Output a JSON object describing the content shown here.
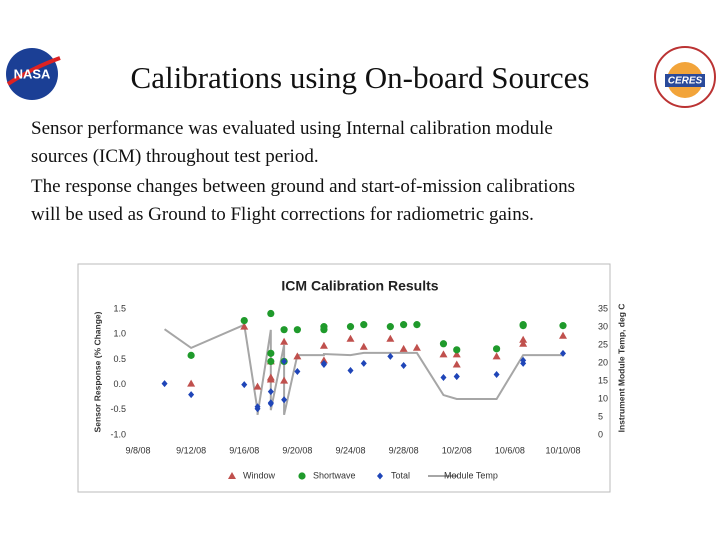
{
  "title": "Calibrations using On-board Sources",
  "body": [
    "Sensor performance was evaluated using Internal calibration module",
    "sources (ICM) throughout test period.",
    "The response changes between ground and start-of-mission  calibrations",
    "will be used as Ground to Flight corrections for radiometric gains."
  ],
  "logos": [
    "NASA",
    "CERES"
  ],
  "chart_data": {
    "type": "scatter",
    "title": "ICM Calibration Results",
    "y_label": "Sensor Response (% Change)",
    "y2_label": "Instrument Module Temp, deg C",
    "xlim": [
      "2008-09-08",
      "2008-10-10"
    ],
    "xticks": [
      {
        "value": "2008-09-08",
        "label": "9/8/08"
      },
      {
        "value": "2008-09-12",
        "label": "9/12/08"
      },
      {
        "value": "2008-09-16",
        "label": "9/16/08"
      },
      {
        "value": "2008-09-20",
        "label": "9/20/08"
      },
      {
        "value": "2008-09-24",
        "label": "9/24/08"
      },
      {
        "value": "2008-09-28",
        "label": "9/28/08"
      },
      {
        "value": "2008-10-02",
        "label": "10/2/08"
      },
      {
        "value": "2008-10-06",
        "label": "10/6/08"
      },
      {
        "value": "2008-10-10",
        "label": "10/10/08"
      }
    ],
    "ylim": [
      -1.0,
      1.5
    ],
    "yticks": [
      {
        "value": -1.0,
        "label": "-1.0"
      },
      -0.5,
      {
        "value": 0.0,
        "label": "0.0"
      },
      0.5,
      {
        "value": 1.0,
        "label": "1.0"
      },
      1.5
    ],
    "y2lim": [
      0,
      35
    ],
    "y2ticks": [
      0,
      5,
      10,
      15,
      20,
      25,
      30,
      35
    ],
    "grid": false,
    "legend": "bottom",
    "series": [
      {
        "name": "Window",
        "color": "#c0504d",
        "marker": "triangle",
        "x": [
          "2008-09-12",
          "2008-09-16",
          "2008-09-17",
          "2008-09-18",
          "2008-09-18",
          "2008-09-18",
          "2008-09-19",
          "2008-09-19",
          "2008-09-20",
          "2008-09-22",
          "2008-09-22",
          "2008-09-24",
          "2008-09-25",
          "2008-09-27",
          "2008-09-28",
          "2008-09-29",
          "2008-10-01",
          "2008-10-02",
          "2008-10-02",
          "2008-10-05",
          "2008-10-07",
          "2008-10-07",
          "2008-10-10"
        ],
        "values": [
          0.02,
          1.15,
          -0.04,
          0.14,
          0.46,
          0.1,
          0.85,
          0.08,
          0.56,
          0.77,
          0.48,
          0.91,
          0.75,
          0.91,
          0.71,
          0.73,
          0.6,
          0.4,
          0.6,
          0.56,
          0.89,
          0.81,
          0.97
        ]
      },
      {
        "name": "Shortwave",
        "color": "#1f9a2b",
        "marker": "circle",
        "x": [
          "2008-09-12",
          "2008-09-16",
          "2008-09-18",
          "2008-09-18",
          "2008-09-18",
          "2008-09-19",
          "2008-09-19",
          "2008-09-20",
          "2008-09-22",
          "2008-09-22",
          "2008-09-24",
          "2008-09-25",
          "2008-09-27",
          "2008-09-28",
          "2008-09-29",
          "2008-10-01",
          "2008-10-02",
          "2008-10-05",
          "2008-10-07",
          "2008-10-07",
          "2008-10-10"
        ],
        "values": [
          0.58,
          1.27,
          1.41,
          0.62,
          0.46,
          1.09,
          0.46,
          1.09,
          1.09,
          1.15,
          1.15,
          1.19,
          1.15,
          1.19,
          1.19,
          0.81,
          0.69,
          0.71,
          1.19,
          1.17,
          1.17
        ]
      },
      {
        "name": "Total",
        "color": "#1f45b8",
        "marker": "diamond",
        "x": [
          "2008-09-10",
          "2008-09-12",
          "2008-09-16",
          "2008-09-17",
          "2008-09-17",
          "2008-09-18",
          "2008-09-18",
          "2008-09-18",
          "2008-09-19",
          "2008-09-19",
          "2008-09-20",
          "2008-09-22",
          "2008-09-22",
          "2008-09-24",
          "2008-09-25",
          "2008-09-27",
          "2008-09-28",
          "2008-10-01",
          "2008-10-02",
          "2008-10-02",
          "2008-10-05",
          "2008-10-07",
          "2008-10-07",
          "2008-10-10"
        ],
        "values": [
          0.02,
          -0.2,
          0.0,
          -0.48,
          -0.44,
          -0.14,
          -0.38,
          -0.36,
          0.46,
          -0.3,
          0.26,
          0.42,
          0.4,
          0.28,
          0.42,
          0.56,
          0.38,
          0.14,
          0.16,
          0.16,
          0.2,
          0.42,
          0.48,
          0.62
        ]
      },
      {
        "name": "Module Temp",
        "color": "#a6a6a6",
        "marker": "line",
        "axis": "y2",
        "x": [
          "2008-09-10",
          "2008-09-12",
          "2008-09-16",
          "2008-09-17",
          "2008-09-17",
          "2008-09-18",
          "2008-09-18",
          "2008-09-18",
          "2008-09-19",
          "2008-09-19",
          "2008-09-20",
          "2008-09-22",
          "2008-09-22",
          "2008-09-24",
          "2008-09-25",
          "2008-09-27",
          "2008-09-29",
          "2008-10-01",
          "2008-10-02",
          "2008-10-05",
          "2008-10-07",
          "2008-10-10"
        ],
        "values": [
          29.4,
          24.2,
          30.6,
          6.9,
          5.6,
          29.2,
          9.7,
          6.9,
          25,
          5.6,
          22.2,
          22.2,
          22.5,
          22.2,
          22.8,
          22.8,
          22.8,
          11.1,
          10,
          10,
          22.2,
          22.2
        ]
      }
    ]
  }
}
